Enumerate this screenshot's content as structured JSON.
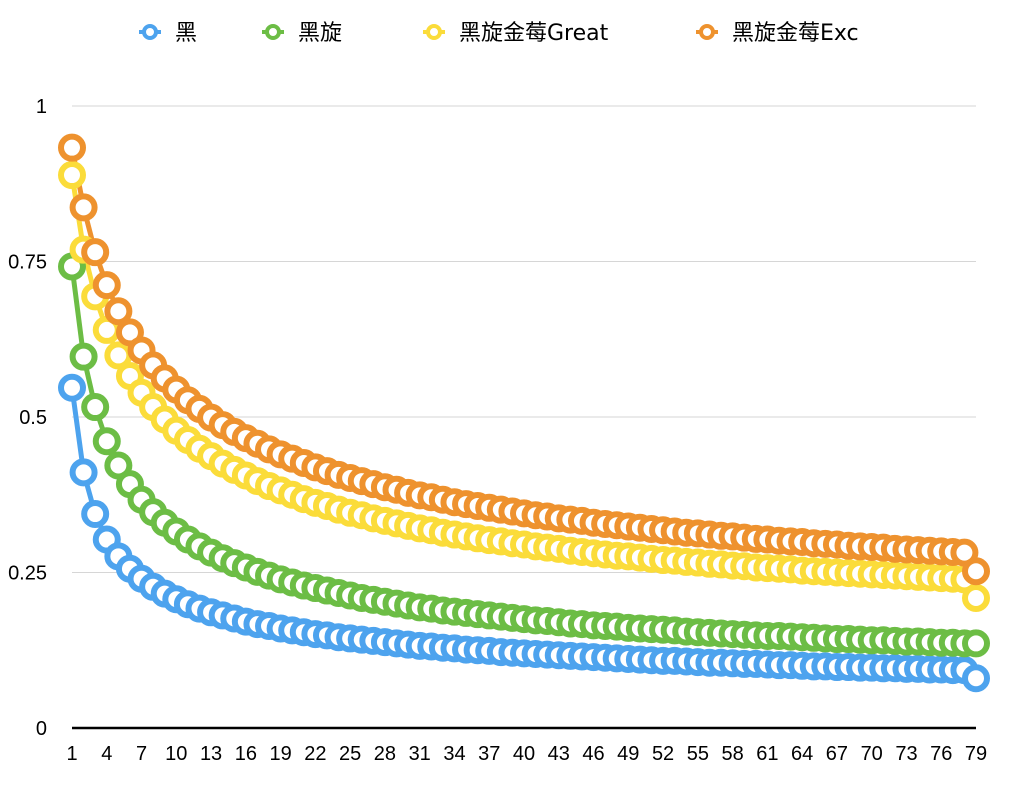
{
  "chart_data": {
    "type": "line",
    "x_start": 1,
    "x_end": 79,
    "xtick_step": 3,
    "ylim": [
      0,
      1
    ],
    "yticks": [
      0,
      0.25,
      0.5,
      0.75,
      1
    ],
    "ytick_labels": [
      "0",
      "0.25",
      "0.5",
      "0.75",
      "1"
    ],
    "grid": true,
    "legend_position": "top",
    "series": [
      {
        "name": "黑",
        "color": "#4da3ee",
        "values": [
          0.547,
          0.411,
          0.344,
          0.303,
          0.276,
          0.256,
          0.24,
          0.227,
          0.216,
          0.207,
          0.199,
          0.192,
          0.186,
          0.181,
          0.176,
          0.171,
          0.167,
          0.164,
          0.16,
          0.157,
          0.154,
          0.151,
          0.149,
          0.146,
          0.144,
          0.142,
          0.14,
          0.138,
          0.136,
          0.134,
          0.132,
          0.131,
          0.129,
          0.128,
          0.126,
          0.125,
          0.124,
          0.122,
          0.121,
          0.12,
          0.119,
          0.118,
          0.117,
          0.116,
          0.115,
          0.114,
          0.113,
          0.112,
          0.111,
          0.11,
          0.109,
          0.108,
          0.108,
          0.107,
          0.106,
          0.105,
          0.105,
          0.104,
          0.103,
          0.103,
          0.102,
          0.101,
          0.101,
          0.1,
          0.099,
          0.099,
          0.098,
          0.098,
          0.097,
          0.097,
          0.096,
          0.096,
          0.095,
          0.095,
          0.094,
          0.094,
          0.093,
          0.093,
          0.08
        ]
      },
      {
        "name": "黑旋",
        "color": "#6cbd45",
        "values": [
          0.742,
          0.597,
          0.516,
          0.461,
          0.422,
          0.392,
          0.367,
          0.347,
          0.33,
          0.316,
          0.303,
          0.292,
          0.282,
          0.273,
          0.265,
          0.258,
          0.251,
          0.245,
          0.239,
          0.234,
          0.229,
          0.225,
          0.221,
          0.217,
          0.213,
          0.209,
          0.206,
          0.203,
          0.2,
          0.197,
          0.194,
          0.192,
          0.189,
          0.187,
          0.185,
          0.183,
          0.181,
          0.179,
          0.177,
          0.175,
          0.173,
          0.172,
          0.17,
          0.168,
          0.167,
          0.165,
          0.164,
          0.163,
          0.161,
          0.16,
          0.159,
          0.158,
          0.157,
          0.155,
          0.154,
          0.153,
          0.152,
          0.151,
          0.15,
          0.149,
          0.148,
          0.148,
          0.147,
          0.146,
          0.145,
          0.144,
          0.143,
          0.143,
          0.142,
          0.141,
          0.141,
          0.14,
          0.139,
          0.139,
          0.138,
          0.137,
          0.137,
          0.136,
          0.136
        ]
      },
      {
        "name": "黑旋金莓Great",
        "color": "#fbdc3a",
        "values": [
          0.889,
          0.769,
          0.694,
          0.64,
          0.599,
          0.566,
          0.539,
          0.516,
          0.496,
          0.478,
          0.463,
          0.449,
          0.437,
          0.425,
          0.415,
          0.406,
          0.397,
          0.389,
          0.382,
          0.375,
          0.368,
          0.362,
          0.357,
          0.351,
          0.346,
          0.342,
          0.337,
          0.333,
          0.329,
          0.325,
          0.321,
          0.318,
          0.314,
          0.311,
          0.308,
          0.305,
          0.302,
          0.3,
          0.297,
          0.295,
          0.292,
          0.29,
          0.288,
          0.285,
          0.283,
          0.281,
          0.279,
          0.277,
          0.276,
          0.274,
          0.272,
          0.27,
          0.269,
          0.267,
          0.266,
          0.264,
          0.263,
          0.261,
          0.26,
          0.258,
          0.257,
          0.256,
          0.255,
          0.253,
          0.252,
          0.251,
          0.25,
          0.249,
          0.248,
          0.247,
          0.246,
          0.245,
          0.244,
          0.243,
          0.242,
          0.241,
          0.24,
          0.239,
          0.209
        ]
      },
      {
        "name": "黑旋金莓Exc",
        "color": "#ee922e",
        "values": [
          0.933,
          0.837,
          0.765,
          0.712,
          0.67,
          0.636,
          0.607,
          0.583,
          0.562,
          0.544,
          0.527,
          0.513,
          0.499,
          0.487,
          0.476,
          0.466,
          0.457,
          0.448,
          0.44,
          0.433,
          0.426,
          0.419,
          0.413,
          0.407,
          0.402,
          0.397,
          0.392,
          0.387,
          0.383,
          0.378,
          0.374,
          0.371,
          0.367,
          0.363,
          0.36,
          0.357,
          0.354,
          0.351,
          0.348,
          0.345,
          0.342,
          0.34,
          0.337,
          0.335,
          0.333,
          0.33,
          0.328,
          0.326,
          0.324,
          0.322,
          0.32,
          0.318,
          0.316,
          0.314,
          0.313,
          0.311,
          0.309,
          0.308,
          0.306,
          0.304,
          0.303,
          0.301,
          0.3,
          0.299,
          0.297,
          0.296,
          0.295,
          0.293,
          0.292,
          0.291,
          0.29,
          0.288,
          0.287,
          0.286,
          0.285,
          0.284,
          0.283,
          0.282,
          0.252
        ]
      }
    ]
  }
}
